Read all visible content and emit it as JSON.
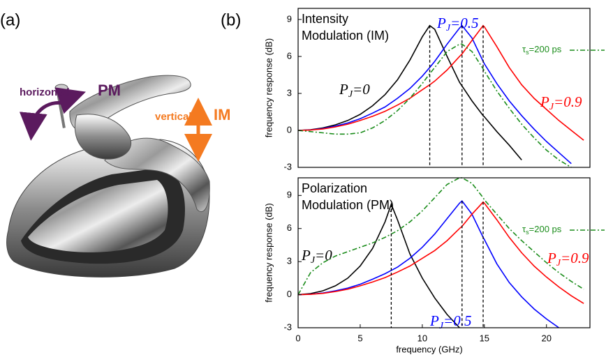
{
  "panels": {
    "a": "(a)",
    "b": "(b)"
  },
  "faucet_labels": [
    "horizontal",
    "PM",
    "vertical",
    "IM"
  ],
  "chart_data": [
    {
      "type": "line",
      "title_lines": [
        "Intensity",
        "Modulation (IM)"
      ],
      "y_label": "frequency response (dB)",
      "x": [
        0,
        1,
        2,
        3,
        4,
        5,
        6,
        7,
        8,
        9,
        10,
        10.6,
        11,
        12,
        13,
        13.2,
        14,
        14.9,
        15,
        16,
        17,
        18,
        19,
        20,
        21,
        22,
        23
      ],
      "xlim": [
        0,
        23.5
      ],
      "ylim": [
        -3,
        9.9
      ],
      "yticks": [
        -3,
        0,
        3,
        6,
        9
      ],
      "series": [
        {
          "label": {
            "main": "P",
            "sub": "J",
            "rest": "=0"
          },
          "color": "#000000",
          "style": "solid",
          "values": [
            0,
            0.05,
            0.2,
            0.45,
            0.8,
            1.3,
            2.0,
            2.9,
            4.1,
            5.7,
            7.6,
            8.5,
            8.2,
            6.0,
            3.9,
            3.6,
            2.4,
            1.2,
            1.1,
            -0.1,
            -1.2,
            -2.4,
            null,
            null,
            null,
            null,
            null
          ]
        },
        {
          "label": {
            "main": "P",
            "sub": "J",
            "rest": "=0.5"
          },
          "color": "#0000ff",
          "style": "solid",
          "values": [
            0,
            0.04,
            0.15,
            0.35,
            0.6,
            0.95,
            1.4,
            1.9,
            2.6,
            3.4,
            4.4,
            5.1,
            5.6,
            7.0,
            8.3,
            8.5,
            7.5,
            5.6,
            5.4,
            3.8,
            2.4,
            1.2,
            0.1,
            -0.9,
            -1.8,
            -2.7,
            null
          ]
        },
        {
          "label": {
            "main": "P",
            "sub": "J",
            "rest": "=0.9"
          },
          "color": "#ff0000",
          "style": "solid",
          "values": [
            0,
            0.03,
            0.12,
            0.28,
            0.5,
            0.8,
            1.15,
            1.55,
            2.05,
            2.6,
            3.3,
            3.7,
            4.0,
            4.9,
            6.0,
            6.2,
            7.3,
            8.5,
            8.4,
            6.8,
            5.1,
            3.7,
            2.6,
            1.7,
            0.8,
            0.0,
            -0.8
          ]
        },
        {
          "label": {
            "main": "τ",
            "sub": "s",
            "rest": "=200 ps"
          },
          "color": "#1a8c1a",
          "style": "dashdot",
          "values": [
            0,
            -0.1,
            -0.2,
            -0.3,
            -0.3,
            -0.2,
            0.2,
            0.8,
            1.6,
            2.6,
            3.8,
            4.6,
            5.1,
            6.4,
            7.0,
            7.0,
            6.4,
            5.0,
            4.8,
            3.2,
            1.8,
            0.5,
            -0.6,
            -1.6,
            -2.4,
            -3.0,
            null
          ]
        }
      ],
      "peak_lines": [
        {
          "x": 10.6,
          "y": 8.5
        },
        {
          "x": 13.2,
          "y": 8.5
        },
        {
          "x": 14.9,
          "y": 8.5
        }
      ]
    },
    {
      "type": "line",
      "title_lines": [
        "Polarization",
        "Modulation (PM)"
      ],
      "y_label": "frequency response (dB)",
      "x_label": "frequency (GHz)",
      "x": [
        0,
        1,
        2,
        3,
        4,
        5,
        6,
        7,
        7.5,
        8,
        9,
        10,
        11,
        12,
        13,
        13.2,
        14,
        14.9,
        15,
        16,
        17,
        18,
        19,
        20,
        21,
        22,
        23
      ],
      "xlim": [
        0,
        23.5
      ],
      "ylim": [
        -3,
        10.6
      ],
      "yticks": [
        -3,
        0,
        3,
        6,
        9
      ],
      "xticks": [
        0,
        5,
        10,
        15,
        20
      ],
      "series": [
        {
          "label": {
            "main": "P",
            "sub": "J",
            "rest": "=0"
          },
          "color": "#000000",
          "style": "solid",
          "values": [
            0,
            0.1,
            0.35,
            0.8,
            1.5,
            2.6,
            4.2,
            6.6,
            8.2,
            6.8,
            3.7,
            1.5,
            -0.3,
            -1.8,
            -3.0,
            null,
            null,
            null,
            null,
            null,
            null,
            null,
            null,
            null,
            null,
            null,
            null
          ]
        },
        {
          "label": {
            "main": "P",
            "sub": "J",
            "rest": "=0.5"
          },
          "color": "#0000ff",
          "style": "solid",
          "values": [
            0,
            0.04,
            0.15,
            0.35,
            0.6,
            0.95,
            1.4,
            1.9,
            2.2,
            2.5,
            3.3,
            4.3,
            5.5,
            6.9,
            8.3,
            8.5,
            7.3,
            5.2,
            5.0,
            2.8,
            1.1,
            -0.2,
            -1.3,
            -2.2,
            -3.0,
            null,
            null
          ]
        },
        {
          "label": {
            "main": "P",
            "sub": "J",
            "rest": "=0.9"
          },
          "color": "#ff0000",
          "style": "solid",
          "values": [
            0,
            0.03,
            0.12,
            0.28,
            0.5,
            0.8,
            1.15,
            1.55,
            1.8,
            2.05,
            2.6,
            3.3,
            4.0,
            4.9,
            6.0,
            6.2,
            7.3,
            8.4,
            8.3,
            6.8,
            5.2,
            3.8,
            2.6,
            1.6,
            0.7,
            -0.1,
            -0.8
          ]
        },
        {
          "label": {
            "main": "τ",
            "sub": "s",
            "rest": "=200 ps"
          },
          "color": "#1a8c1a",
          "style": "dashdot",
          "values": [
            0,
            2.0,
            2.9,
            3.5,
            3.9,
            4.3,
            4.7,
            5.2,
            5.5,
            5.8,
            6.6,
            7.6,
            8.8,
            10.0,
            10.6,
            10.6,
            10.1,
            8.8,
            8.6,
            7.3,
            6.0,
            4.9,
            3.9,
            2.9,
            2.0,
            1.2,
            0.5
          ]
        }
      ],
      "peak_lines": [
        {
          "x": 7.5,
          "y": 8.2
        },
        {
          "x": 13.2,
          "y": 8.5
        },
        {
          "x": 14.9,
          "y": 8.4
        }
      ]
    }
  ]
}
